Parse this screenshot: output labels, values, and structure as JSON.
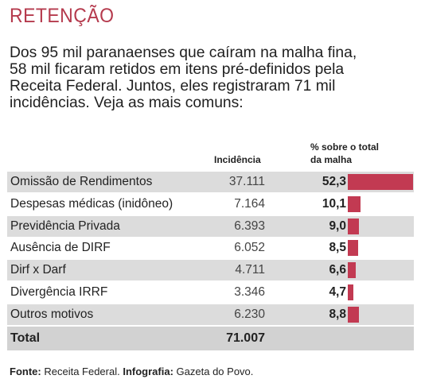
{
  "header": {
    "title": "RETENÇÃO",
    "intro_lines": [
      "Dos 95 mil paranaenses que caíram na malha fina,",
      "58 mil ficaram retidos em itens pré-definidos pela",
      "Receita Federal. Juntos, eles registraram 71 mil",
      "incidências. Veja as mais comuns:"
    ]
  },
  "columns": {
    "incidencia": "Incidência",
    "pct_line1": "% sobre o total",
    "pct_line2": "da malha"
  },
  "chart_data": {
    "type": "bar",
    "categories": [
      "Omissão de Rendimentos",
      "Despesas médicas (inidôneo)",
      "Previdência Privada",
      "Ausência de DIRF",
      "Dirf x Darf",
      "Divergência IRRF",
      "Outros motivos"
    ],
    "incidencias": [
      "37.111",
      "7.164",
      "6.393",
      "6.052",
      "4.711",
      "3.346",
      "6.230"
    ],
    "percent_labels": [
      "52,3",
      "10,1",
      "9,0",
      "8,5",
      "6,6",
      "4,7",
      "8,8"
    ],
    "values": [
      52.3,
      10.1,
      9.0,
      8.5,
      6.6,
      4.7,
      8.8
    ],
    "ylabel": "% sobre o total da malha",
    "bar_color": "#c23a52",
    "total_label": "Total",
    "total_value": "71.007"
  },
  "footer": {
    "fonte_label": "Fonte:",
    "fonte_text": "Receita Federal.",
    "infografia_label": "Infografia:",
    "infografia_text": "Gazeta do Povo."
  }
}
